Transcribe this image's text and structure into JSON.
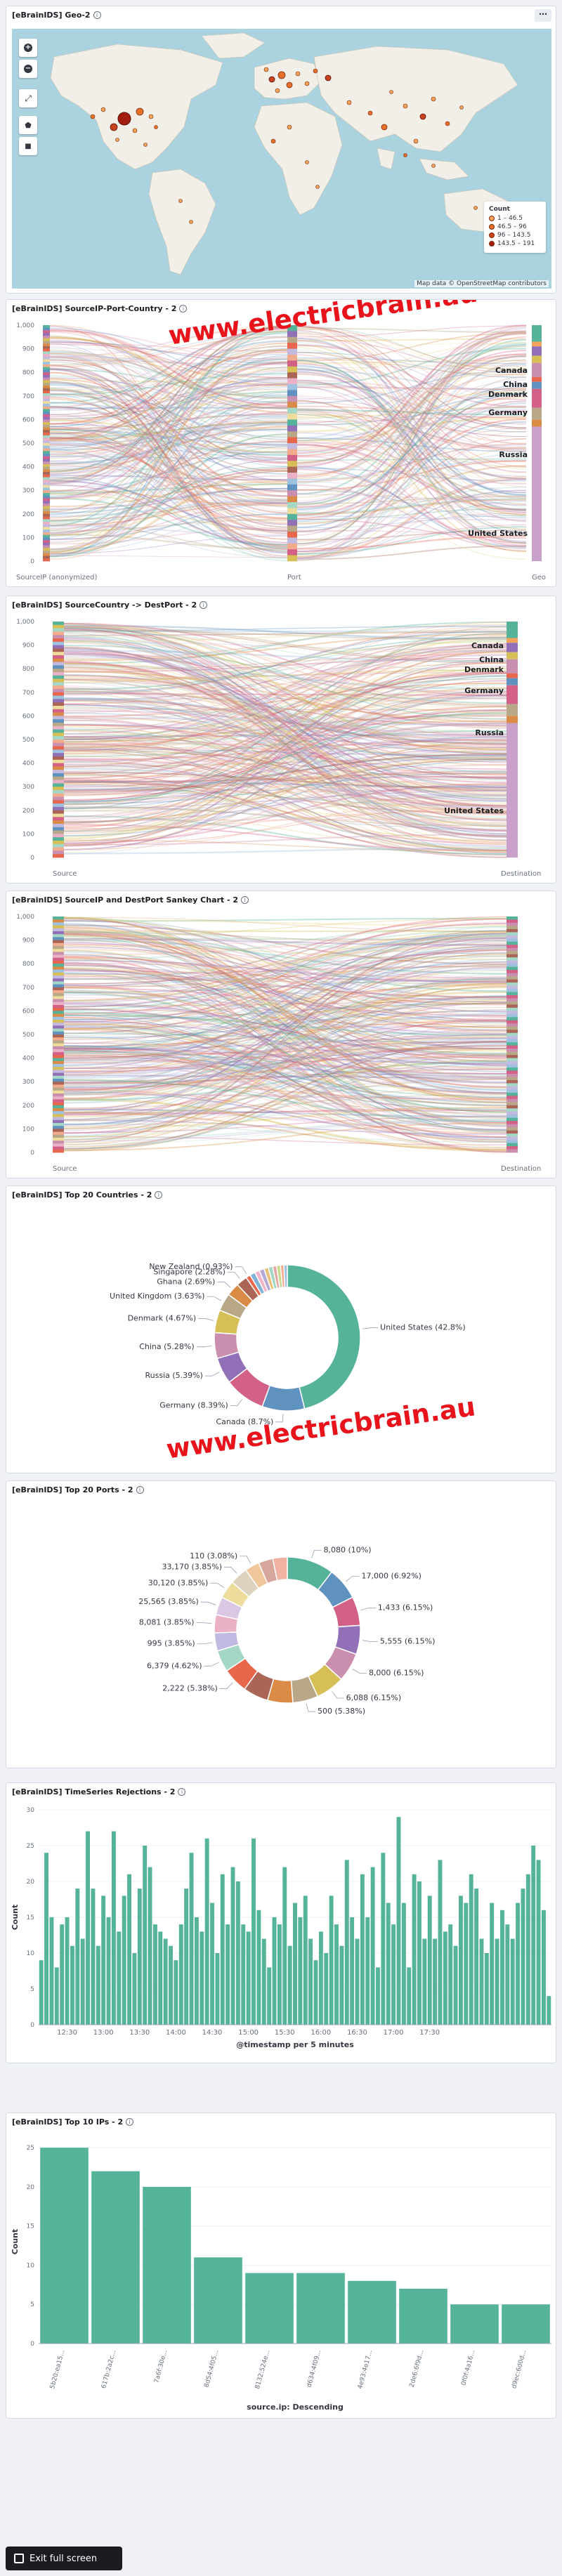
{
  "panels": {
    "geo": {
      "title": "[eBrainIDS] Geo-2"
    },
    "sankey1": {
      "title": "[eBrainIDS] SourceIP-Port-Country - 2"
    },
    "sankey2": {
      "title": "[eBrainIDS] SourceCountry -> DestPort - 2"
    },
    "sankey3": {
      "title": "[eBrainIDS] SourceIP and DestPort Sankey Chart - 2"
    },
    "countries": {
      "title": "[eBrainIDS] Top 20 Countries - 2"
    },
    "ports": {
      "title": "[eBrainIDS] Top 20 Ports - 2"
    },
    "timeseries": {
      "title": "[eBrainIDS] TimeSeries Rejections - 2"
    },
    "topips": {
      "title": "[eBrainIDS] Top 10 IPs - 2"
    }
  },
  "map": {
    "legend_title": "Count",
    "legend": [
      {
        "label": "1 – 46.5",
        "color": "#f5a35b"
      },
      {
        "label": "46.5 – 96",
        "color": "#e66f2a"
      },
      {
        "label": "96 – 143.5",
        "color": "#c7431c"
      },
      {
        "label": "143.5 – 191",
        "color": "#a31d0f"
      }
    ],
    "attribution": "Map data © OpenStreetMap contributors",
    "controls": [
      "zoom-in",
      "zoom-out",
      "fit-bounds",
      "draw-polygon",
      "draw-rectangle"
    ],
    "control_glyphs": [
      "+",
      "−",
      "⤢",
      "⬟",
      "■"
    ]
  },
  "watermark": "www.electricbrain.au",
  "sankey1_labels": {
    "axis": [
      "SourceIP (anonymized)",
      "Port",
      "Geo"
    ],
    "countries": [
      "Canada",
      "China",
      "Denmark",
      "Germany",
      "Russia",
      "United States"
    ]
  },
  "sankey2_labels": {
    "axis": [
      "Source",
      "Destination"
    ],
    "countries": [
      "Canada",
      "China",
      "Denmark",
      "Germany",
      "Russia",
      "United States"
    ]
  },
  "sankey3_labels": {
    "axis": [
      "Source",
      "Destination"
    ]
  },
  "sankey_yaxis": [
    "0",
    "100",
    "200",
    "300",
    "400",
    "500",
    "600",
    "700",
    "800",
    "900",
    "1,000"
  ],
  "colors": {
    "accent": "#54b399"
  },
  "chart_data": [
    {
      "type": "pie",
      "donut": true,
      "title": "[eBrainIDS] Top 20 Countries - 2",
      "slices": [
        {
          "label": "United States (42.8%)",
          "value": 42.8,
          "color": "#54b399"
        },
        {
          "label": "Canada (8.7%)",
          "value": 8.7,
          "color": "#6092c0"
        },
        {
          "label": "Germany (8.39%)",
          "value": 8.39,
          "color": "#d36086"
        },
        {
          "label": "Russia (5.39%)",
          "value": 5.39,
          "color": "#9170b8"
        },
        {
          "label": "China (5.28%)",
          "value": 5.28,
          "color": "#ca8eae"
        },
        {
          "label": "Denmark (4.67%)",
          "value": 4.67,
          "color": "#d6bf57"
        },
        {
          "label": "United Kingdom (3.63%)",
          "value": 3.63,
          "color": "#b9a888"
        },
        {
          "label": "Ghana (2.69%)",
          "value": 2.69,
          "color": "#da8b45"
        },
        {
          "label": "Singapore (2.28%)",
          "value": 2.28,
          "color": "#aa6556"
        },
        {
          "label": "New Zealand (0.93%)",
          "value": 0.93,
          "color": "#e7664c"
        },
        {
          "label": "",
          "value": 1.1,
          "color": "#7fb3d5"
        },
        {
          "label": "",
          "value": 1.0,
          "color": "#f1b4c8"
        },
        {
          "label": "",
          "value": 1.0,
          "color": "#b4a8d4"
        },
        {
          "label": "",
          "value": 0.9,
          "color": "#e8c07a"
        },
        {
          "label": "",
          "value": 0.9,
          "color": "#a5d7c6"
        },
        {
          "label": "",
          "value": 0.8,
          "color": "#e3a8a0"
        },
        {
          "label": "",
          "value": 0.8,
          "color": "#c7d98a"
        },
        {
          "label": "",
          "value": 0.7,
          "color": "#f2ab8c"
        },
        {
          "label": "",
          "value": 0.7,
          "color": "#9ec1e0"
        }
      ]
    },
    {
      "type": "pie",
      "donut": true,
      "title": "[eBrainIDS] Top 20 Ports - 2",
      "slices": [
        {
          "label": "8,080 (10%)",
          "value": 10,
          "color": "#54b399"
        },
        {
          "label": "17,000 (6.92%)",
          "value": 6.92,
          "color": "#6092c0"
        },
        {
          "label": "1,433 (6.15%)",
          "value": 6.15,
          "color": "#d36086"
        },
        {
          "label": "5,555 (6.15%)",
          "value": 6.15,
          "color": "#9170b8"
        },
        {
          "label": "8,000 (6.15%)",
          "value": 6.15,
          "color": "#ca8eae"
        },
        {
          "label": "6,088 (6.15%)",
          "value": 6.15,
          "color": "#d6bf57"
        },
        {
          "label": "500 (5.38%)",
          "value": 5.38,
          "color": "#b9a888"
        },
        {
          "label": "",
          "value": 5.38,
          "color": "#da8b45"
        },
        {
          "label": "",
          "value": 5.38,
          "color": "#aa6556"
        },
        {
          "label": "2,222 (5.38%)",
          "value": 5.38,
          "color": "#e7664c"
        },
        {
          "label": "6,379 (4.62%)",
          "value": 4.62,
          "color": "#a5d7c6"
        },
        {
          "label": "995 (3.85%)",
          "value": 3.85,
          "color": "#c2b9e0"
        },
        {
          "label": "8,081 (3.85%)",
          "value": 3.85,
          "color": "#e9b0c6"
        },
        {
          "label": "25,565 (3.85%)",
          "value": 3.85,
          "color": "#d9c7e3"
        },
        {
          "label": "30,120 (3.85%)",
          "value": 3.85,
          "color": "#eddc9c"
        },
        {
          "label": "33,170 (3.85%)",
          "value": 3.85,
          "color": "#ddd2bd"
        },
        {
          "label": "110 (3.08%)",
          "value": 3.08,
          "color": "#efc79a"
        },
        {
          "label": "",
          "value": 3.08,
          "color": "#d6a59c"
        },
        {
          "label": "",
          "value": 3.08,
          "color": "#f2b2a3"
        }
      ]
    },
    {
      "type": "bar",
      "title": "[eBrainIDS] TimeSeries Rejections - 2",
      "xlabel": "@timestamp per 5 minutes",
      "ylabel": "Count",
      "ylim": [
        0,
        30
      ],
      "yticks": [
        0,
        5,
        10,
        15,
        20,
        25,
        30
      ],
      "xtick_labels": [
        "12:30",
        "13:00",
        "13:30",
        "14:00",
        "14:30",
        "15:00",
        "15:30",
        "16:00",
        "16:30",
        "17:00",
        "17:30"
      ],
      "xtick_bar_index": [
        5,
        12,
        19,
        26,
        33,
        40,
        47,
        54,
        61,
        68,
        75
      ],
      "values": [
        9,
        24,
        15,
        8,
        14,
        15,
        11,
        19,
        12,
        27,
        19,
        11,
        18,
        15,
        27,
        13,
        18,
        21,
        10,
        19,
        25,
        22,
        14,
        13,
        12,
        11,
        9,
        14,
        19,
        24,
        15,
        13,
        26,
        17,
        10,
        21,
        14,
        22,
        20,
        14,
        13,
        26,
        16,
        12,
        8,
        15,
        14,
        22,
        11,
        17,
        15,
        18,
        12,
        9,
        13,
        10,
        18,
        14,
        11,
        23,
        15,
        12,
        21,
        15,
        22,
        8,
        24,
        17,
        14,
        29,
        17,
        8,
        21,
        20,
        12,
        18,
        12,
        23,
        13,
        14,
        11,
        18,
        17,
        21,
        19,
        12,
        10,
        17,
        12,
        16,
        14,
        12,
        17,
        19,
        21,
        25,
        23,
        16,
        4
      ]
    },
    {
      "type": "bar",
      "title": "[eBrainIDS] Top 10 IPs - 2",
      "xlabel": "source.ip: Descending",
      "ylabel": "Count",
      "ylim": [
        0,
        26
      ],
      "yticks": [
        0,
        5,
        10,
        15,
        20,
        25
      ],
      "categories": [
        "5b20:ea15...",
        "617b:2a2c...",
        "7a6f:30e...",
        "8d54:4f05...",
        "8132:524e...",
        "d634:4f09...",
        "4e93:4e17...",
        "2de6:6f9d...",
        "0f0f:4a16...",
        "d9ec:6d0d..."
      ],
      "values": [
        25,
        22,
        20,
        11,
        9,
        9,
        8,
        7,
        5,
        5
      ]
    }
  ],
  "exit_fullscreen": "Exit full screen"
}
